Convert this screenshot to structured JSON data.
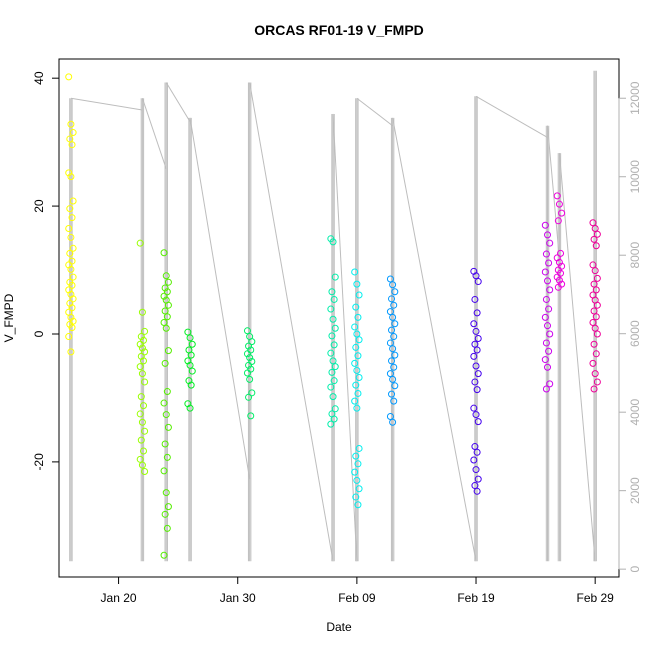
{
  "chart_data": {
    "type": "scatter",
    "title": "ORCAS RF01-19 V_FMPD",
    "xlabel": "Date",
    "ylabel": "V_FMPD",
    "xlim": [
      "2016-01-15",
      "2016-03-02"
    ],
    "ylim": [
      -38,
      43
    ],
    "y_right_lim": [
      -200,
      13000
    ],
    "x_ticks": [
      {
        "date": "2016-01-20",
        "label": "Jan 20"
      },
      {
        "date": "2016-01-30",
        "label": "Jan 30"
      },
      {
        "date": "2016-02-09",
        "label": "Feb 09"
      },
      {
        "date": "2016-02-19",
        "label": "Feb 19"
      },
      {
        "date": "2016-02-29",
        "label": "Feb 29"
      }
    ],
    "y_ticks": [
      -20,
      0,
      20,
      40
    ],
    "y_right_ticks": [
      0,
      2000,
      4000,
      6000,
      8000,
      10000,
      12000
    ],
    "grid": false,
    "series": [
      {
        "date": "2016-01-16",
        "color": "#ffff00",
        "values": [
          40.2,
          32.8,
          31.5,
          30.5,
          29.6,
          25.2,
          24.6,
          20.8,
          19.6,
          18.2,
          16.5,
          15.1,
          13.4,
          12.6,
          11.4,
          10.8,
          10.1,
          8.9,
          8.1,
          7.6,
          6.9,
          6.2,
          5.5,
          4.8,
          4.1,
          3.4,
          2.6,
          2.0,
          1.5,
          1.0,
          -0.4,
          -2.8
        ]
      },
      {
        "date": "2016-01-22",
        "color": "#99ff00",
        "values": [
          14.2,
          3.4,
          0.4,
          -0.4,
          -1.0,
          -1.6,
          -2.2,
          -2.8,
          -3.5,
          -4.2,
          -5.1,
          -6.2,
          -7.5,
          -9.8,
          -11.2,
          -12.5,
          -13.8,
          -15.2,
          -16.6,
          -18.3,
          -19.6,
          -20.5,
          -21.5
        ]
      },
      {
        "date": "2016-01-24",
        "color": "#55ee00",
        "values": [
          12.7,
          9.1,
          8.1,
          7.2,
          6.6,
          5.9,
          5.3,
          4.5,
          3.6,
          2.7,
          1.8,
          0.9,
          -2.6,
          -4.6,
          -9.0,
          -10.8,
          -12.6,
          -14.6,
          -17.2,
          -19.3,
          -21.4,
          -24.8,
          -27.0,
          -28.2,
          -30.4,
          -34.6
        ]
      },
      {
        "date": "2016-01-26",
        "color": "#00ee22",
        "values": [
          0.3,
          -0.6,
          -1.6,
          -2.5,
          -3.3,
          -4.2,
          -4.9,
          -5.8,
          -7.3,
          -8.0,
          -10.9,
          -11.6
        ]
      },
      {
        "date": "2016-01-31",
        "color": "#00ee66",
        "values": [
          0.5,
          -0.4,
          -1.2,
          -1.9,
          -2.5,
          -3.1,
          -3.7,
          -4.3,
          -4.9,
          -5.5,
          -6.1,
          -7.1,
          -9.2,
          -9.9,
          -12.8
        ]
      },
      {
        "date": "2016-02-07",
        "color": "#00eeaa",
        "values": [
          14.9,
          14.4,
          8.9,
          6.6,
          5.4,
          3.9,
          2.3,
          0.9,
          -0.3,
          -1.7,
          -3.0,
          -4.2,
          -5.1,
          -6.0,
          -7.3,
          -8.3,
          -9.8,
          -11.7,
          -12.5,
          -13.3,
          -14.1
        ]
      },
      {
        "date": "2016-02-09",
        "color": "#00eeee",
        "values": [
          9.7,
          7.8,
          6.1,
          4.2,
          2.6,
          1.1,
          0.0,
          -0.9,
          -2.1,
          -3.4,
          -4.6,
          -5.7,
          -6.8,
          -8.0,
          -9.3,
          -10.5,
          -11.6,
          -17.9,
          -19.1,
          -20.3,
          -21.6,
          -22.9,
          -24.2,
          -25.5,
          -26.7
        ]
      },
      {
        "date": "2016-02-12",
        "color": "#0099ff",
        "values": [
          8.6,
          7.7,
          6.6,
          5.5,
          4.5,
          3.5,
          2.6,
          1.6,
          0.6,
          -0.4,
          -1.4,
          -2.3,
          -3.3,
          -4.2,
          -5.2,
          -6.2,
          -7.1,
          -8.1,
          -9.4,
          -10.5,
          -12.9,
          -13.8
        ]
      },
      {
        "date": "2016-02-19",
        "color": "#4400ee",
        "values": [
          9.8,
          9.1,
          8.2,
          5.4,
          3.3,
          1.6,
          0.4,
          -0.7,
          -1.6,
          -2.5,
          -3.5,
          -5.0,
          -6.2,
          -7.5,
          -8.7,
          -11.6,
          -12.6,
          -13.7,
          -17.6,
          -18.5,
          -19.7,
          -21.2,
          -22.7,
          -23.7,
          -24.6
        ]
      },
      {
        "date": "2016-02-25",
        "color": "#cc00ee",
        "values": [
          17.0,
          15.5,
          14.2,
          12.5,
          11.1,
          9.7,
          8.3,
          6.9,
          5.4,
          3.9,
          2.6,
          1.3,
          0.0,
          -1.4,
          -2.7,
          -4.0,
          -5.2,
          -7.8,
          -8.6
        ]
      },
      {
        "date": "2016-02-26",
        "color": "#ee00dd",
        "values": [
          21.6,
          20.3,
          18.9,
          17.7,
          12.6,
          11.9,
          11.2,
          10.6,
          10.0,
          9.5,
          8.9,
          8.4,
          7.8,
          7.3
        ]
      },
      {
        "date": "2016-02-29",
        "color": "#ee0099",
        "values": [
          17.4,
          16.5,
          15.6,
          14.8,
          13.8,
          10.8,
          9.9,
          8.7,
          7.8,
          6.9,
          6.1,
          5.3,
          4.5,
          3.6,
          2.7,
          1.8,
          0.9,
          0.0,
          -1.6,
          -3.1,
          -4.6,
          -6.2,
          -7.5,
          -8.6
        ]
      }
    ],
    "secondary_series": {
      "axis": "right",
      "color": "#bdbdbd",
      "segments": [
        {
          "start": "2016-01-16",
          "end": "2016-01-22",
          "end_value": 12000
        },
        {
          "start": "2016-01-22",
          "end": "2016-01-24",
          "end_value": 12000
        },
        {
          "start": "2016-01-24",
          "end": "2016-01-26",
          "end_value": 11700
        },
        {
          "start": "2016-01-26",
          "end": "2016-01-31",
          "end_value": 12400
        },
        {
          "start": "2016-01-31",
          "end": "2016-02-07",
          "end_value": 11400
        },
        {
          "start": "2016-02-07",
          "end": "2016-02-09",
          "end_value": 12000
        },
        {
          "start": "2016-02-09",
          "end": "2016-02-12",
          "end_value": 11900
        },
        {
          "start": "2016-02-12",
          "end": "2016-02-19",
          "end_value": 12050
        },
        {
          "start": "2016-02-19",
          "end": "2016-02-25",
          "end_value": 11300
        },
        {
          "start": "2016-02-25",
          "end": "2016-02-26",
          "end_value": 10600
        },
        {
          "start": "2016-02-26",
          "end": "2016-02-29",
          "end_value": 12200
        }
      ],
      "flights": [
        {
          "date": "2016-01-16",
          "low": 200,
          "high": 12000,
          "start": 9800
        },
        {
          "date": "2016-01-22",
          "low": 200,
          "high": 12000,
          "start": 11700
        },
        {
          "date": "2016-01-24",
          "low": 200,
          "high": 12400,
          "start": 10200
        },
        {
          "date": "2016-01-26",
          "low": 200,
          "high": 11500,
          "start": 11400
        },
        {
          "date": "2016-01-31",
          "low": 200,
          "high": 12400,
          "start": 2300
        },
        {
          "date": "2016-02-07",
          "low": 200,
          "high": 11600,
          "start": 200
        },
        {
          "date": "2016-02-09",
          "low": 200,
          "high": 12000,
          "start": 200
        },
        {
          "date": "2016-02-12",
          "low": 200,
          "high": 11500,
          "start": 11300
        },
        {
          "date": "2016-02-19",
          "low": 200,
          "high": 12050,
          "start": 200
        },
        {
          "date": "2016-02-25",
          "low": 200,
          "high": 11300,
          "start": 11000
        },
        {
          "date": "2016-02-26",
          "low": 200,
          "high": 10600,
          "start": 7900
        },
        {
          "date": "2016-02-29",
          "low": 200,
          "high": 12700,
          "start": 200
        }
      ]
    }
  }
}
